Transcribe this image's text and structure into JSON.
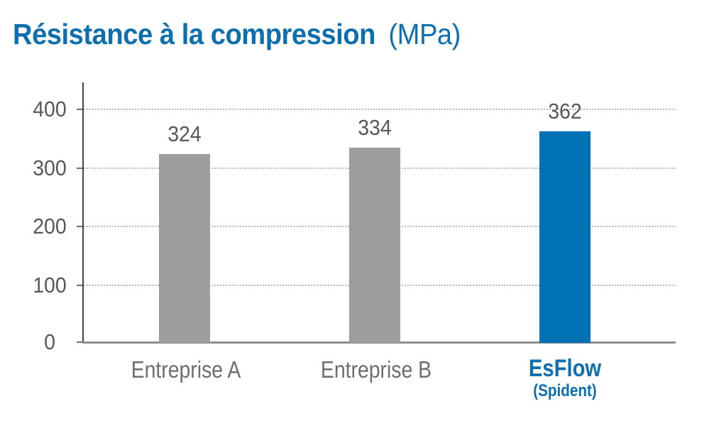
{
  "title": {
    "main": "Résistance à la compression",
    "unit": "(MPa)"
  },
  "chart_data": {
    "type": "bar",
    "title": "Résistance à la compression (MPa)",
    "categories": [
      "Entreprise A",
      "Entreprise B",
      "EsFlow (Spident)"
    ],
    "values": [
      324,
      334,
      362
    ],
    "xlabel": "",
    "ylabel": "",
    "ylim": [
      0,
      400
    ],
    "yticks": [
      0,
      100,
      200,
      300,
      400
    ],
    "grid": "horizontal-dotted",
    "legend": "none",
    "bar_colors": [
      "#9d9d9d",
      "#9d9d9d",
      "#0071b3"
    ]
  },
  "x_labels": [
    {
      "line1": "Entreprise A"
    },
    {
      "line1": "Entreprise B"
    },
    {
      "line1": "EsFlow",
      "line2": "(Spident)"
    }
  ],
  "colors": {
    "brand_blue": "#0071b3",
    "title_blue": "#0d6fae",
    "bar_gray": "#9d9d9d",
    "value_label_gray": "#57585a",
    "category_label_gray": "#6d6e70",
    "gridline_gray": "#b9b9ba",
    "axis_dark": "#454547",
    "baseline_gray": "#8d8d8f"
  }
}
